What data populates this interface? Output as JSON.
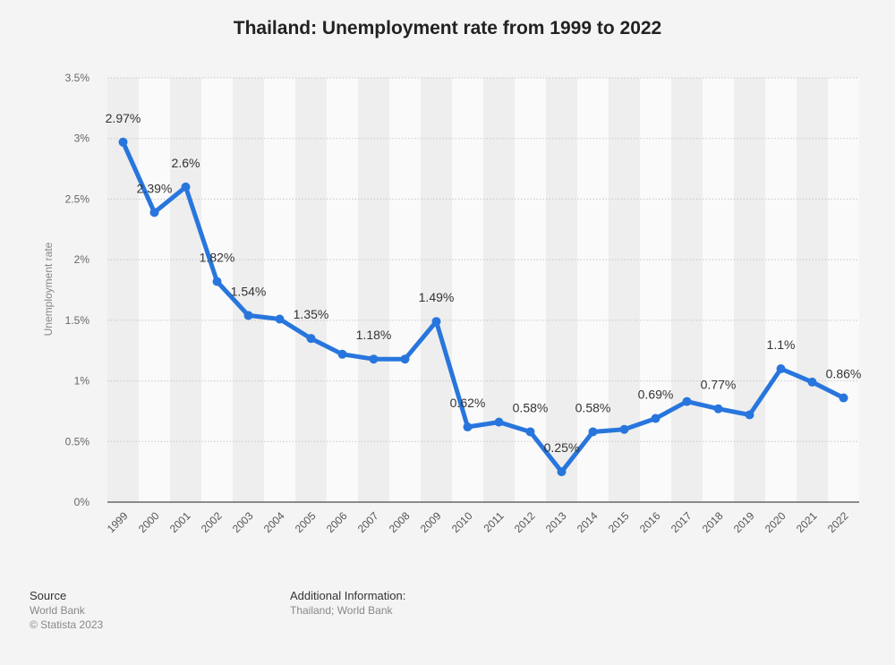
{
  "chart_data": {
    "type": "line",
    "title": "Thailand: Unemployment rate from 1999 to 2022",
    "ylabel": "Unemployment rate",
    "xlabel": "",
    "ylim": [
      0,
      3.5
    ],
    "yticks": [
      "0%",
      "0.5%",
      "1%",
      "1.5%",
      "2%",
      "2.5%",
      "3%",
      "3.5%"
    ],
    "categories": [
      "1999",
      "2000",
      "2001",
      "2002",
      "2003",
      "2004",
      "2005",
      "2006",
      "2007",
      "2008",
      "2009",
      "2010",
      "2011",
      "2012",
      "2013",
      "2014",
      "2015",
      "2016",
      "2017",
      "2018",
      "2019",
      "2020",
      "2021",
      "2022"
    ],
    "values": [
      2.97,
      2.39,
      2.6,
      1.82,
      1.54,
      1.51,
      1.35,
      1.22,
      1.18,
      1.18,
      1.49,
      0.62,
      0.66,
      0.58,
      0.25,
      0.58,
      0.6,
      0.69,
      0.83,
      0.77,
      0.72,
      1.1,
      0.99,
      0.86
    ],
    "data_labels": [
      "2.97%",
      "2.39%",
      "2.6%",
      "1.82%",
      "1.54%",
      "",
      "1.35%",
      "",
      "1.18%",
      "",
      "1.49%",
      "0.62%",
      "",
      "0.58%",
      "0.25%",
      "0.58%",
      "",
      "0.69%",
      "",
      "0.77%",
      "",
      "1.1%",
      "",
      "0.86%"
    ],
    "line_color": "#2876dd",
    "grid": true
  },
  "footer": {
    "source_heading": "Source",
    "source_name": "World Bank",
    "copyright": "© Statista 2023",
    "additional_heading": "Additional Information:",
    "additional_text": "Thailand; World Bank"
  }
}
